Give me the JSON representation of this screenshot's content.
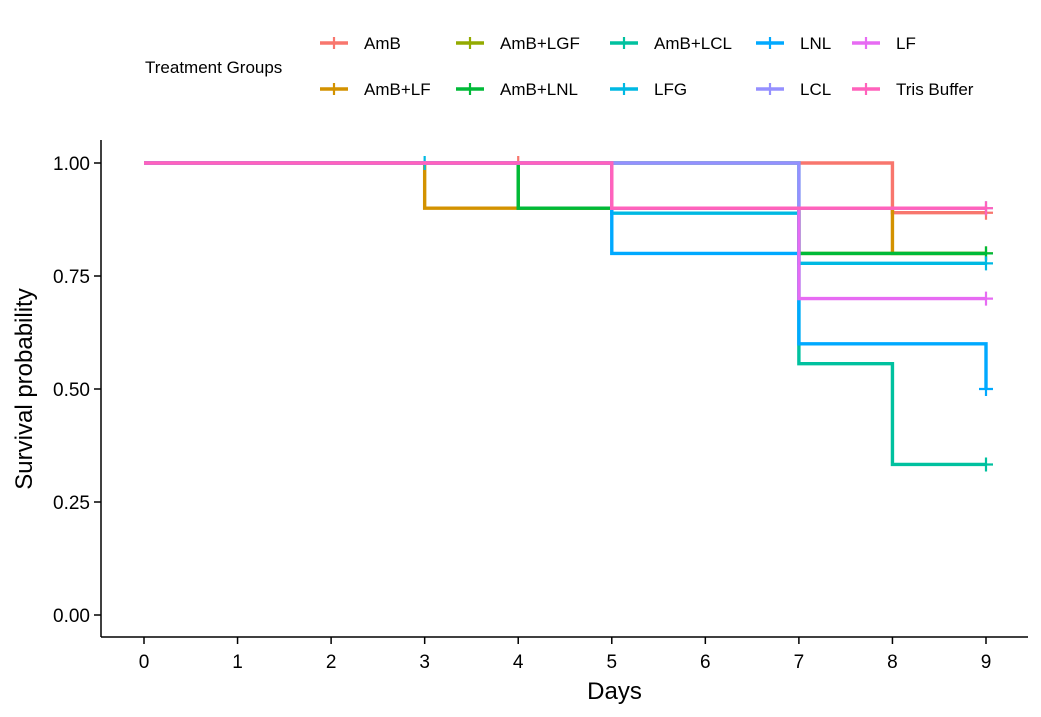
{
  "chart_data": {
    "type": "line",
    "subtype": "kaplan-meier survival curve",
    "xlabel": "Days",
    "ylabel": "Survival probability",
    "xlim": [
      0,
      9
    ],
    "ylim": [
      0,
      1
    ],
    "x_ticks": [
      "0",
      "1",
      "2",
      "3",
      "4",
      "5",
      "6",
      "7",
      "8",
      "9"
    ],
    "y_ticks": [
      "0.00",
      "0.25",
      "0.50",
      "0.75",
      "1.00"
    ],
    "grid": false,
    "legend": {
      "title": "Treatment Groups",
      "position": "top"
    },
    "series": [
      {
        "name": "AmB",
        "color": "#F8766D",
        "steps": [
          [
            0,
            1.0
          ],
          [
            8,
            0.89
          ]
        ],
        "end": 9,
        "censor": [
          [
            4,
            1.0
          ],
          [
            9,
            0.89
          ]
        ]
      },
      {
        "name": "AmB+LF",
        "color": "#D39200",
        "steps": [
          [
            0,
            1.0
          ],
          [
            3,
            0.9
          ],
          [
            8,
            0.8
          ]
        ],
        "end": 9,
        "censor": []
      },
      {
        "name": "AmB+LGF",
        "color": "#93AA00",
        "steps": [
          [
            0,
            1.0
          ],
          [
            4,
            0.9
          ],
          [
            7,
            0.8
          ]
        ],
        "end": 9,
        "censor": [
          [
            9,
            0.8
          ]
        ]
      },
      {
        "name": "AmB+LNL",
        "color": "#00BA38",
        "steps": [
          [
            0,
            1.0
          ],
          [
            4,
            0.9
          ],
          [
            7,
            0.8
          ]
        ],
        "end": 9,
        "censor": [
          [
            9,
            0.8
          ]
        ]
      },
      {
        "name": "AmB+LCL",
        "color": "#00C19F",
        "steps": [
          [
            0,
            1.0
          ],
          [
            7,
            0.556
          ],
          [
            8,
            0.333
          ]
        ],
        "end": 9,
        "censor": [
          [
            9,
            0.333
          ]
        ]
      },
      {
        "name": "LFG",
        "color": "#00B9E3",
        "steps": [
          [
            0,
            1.0
          ],
          [
            5,
            0.889
          ],
          [
            7,
            0.778
          ]
        ],
        "end": 9,
        "censor": [
          [
            3,
            1.0
          ],
          [
            9,
            0.778
          ]
        ]
      },
      {
        "name": "LNL",
        "color": "#00A9FF",
        "steps": [
          [
            0,
            1.0
          ],
          [
            5,
            0.8
          ],
          [
            7,
            0.6
          ],
          [
            9,
            0.5
          ]
        ],
        "end": 9,
        "censor": [
          [
            9,
            0.5
          ]
        ]
      },
      {
        "name": "LCL",
        "color": "#9590FF",
        "steps": [
          [
            0,
            1.0
          ],
          [
            7,
            0.9
          ]
        ],
        "end": 9,
        "censor": [
          [
            9,
            0.9
          ]
        ]
      },
      {
        "name": "LF",
        "color": "#E76BF3",
        "steps": [
          [
            0,
            1.0
          ],
          [
            5,
            0.9
          ],
          [
            7,
            0.7
          ]
        ],
        "end": 9,
        "censor": [
          [
            9,
            0.7
          ]
        ]
      },
      {
        "name": "Tris Buffer",
        "color": "#FF62BC",
        "steps": [
          [
            0,
            1.0
          ],
          [
            5,
            0.9
          ]
        ],
        "end": 9,
        "censor": [
          [
            9,
            0.9
          ]
        ]
      }
    ]
  }
}
